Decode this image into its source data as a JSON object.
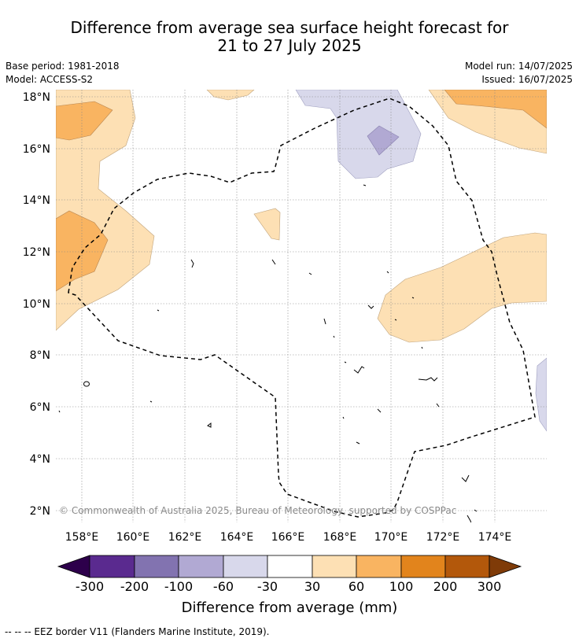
{
  "title": {
    "line1": "Difference from average sea surface height forecast for",
    "line2": "21 to 27 July 2025"
  },
  "meta": {
    "base_period": "Base period: 1981-2018",
    "model": "Model: ACCESS-S2",
    "model_run": "Model run: 14/07/2025",
    "issued": "Issued: 16/07/2025"
  },
  "map": {
    "lat_labels": [
      "18°N",
      "16°N",
      "14°N",
      "12°N",
      "10°N",
      "8°N",
      "6°N",
      "4°N",
      "2°N"
    ],
    "lon_labels": [
      "158°E",
      "160°E",
      "162°E",
      "164°E",
      "166°E",
      "168°E",
      "170°E",
      "172°E",
      "174°E"
    ],
    "copyright": "© Commonwealth of Australia 2025, Bureau of Meteorology, supported by COSPPac",
    "gridlines": true,
    "eez_border_style": "dashed"
  },
  "colorbar": {
    "label": "Difference from average (mm)",
    "tick_labels": [
      "-300",
      "-200",
      "-100",
      "-60",
      "-30",
      "30",
      "60",
      "100",
      "200",
      "300"
    ],
    "colors": [
      "#2d004b",
      "#5a2a8f",
      "#8273b0",
      "#b1a9d3",
      "#d8d8eb",
      "#ffffff",
      "#fde0b4",
      "#f9b461",
      "#e2841c",
      "#b3580b",
      "#7f3b08"
    ]
  },
  "legend": {
    "eez": "-- -- -- EEZ border V11 (Flanders Marine Institute, 2019)."
  }
}
